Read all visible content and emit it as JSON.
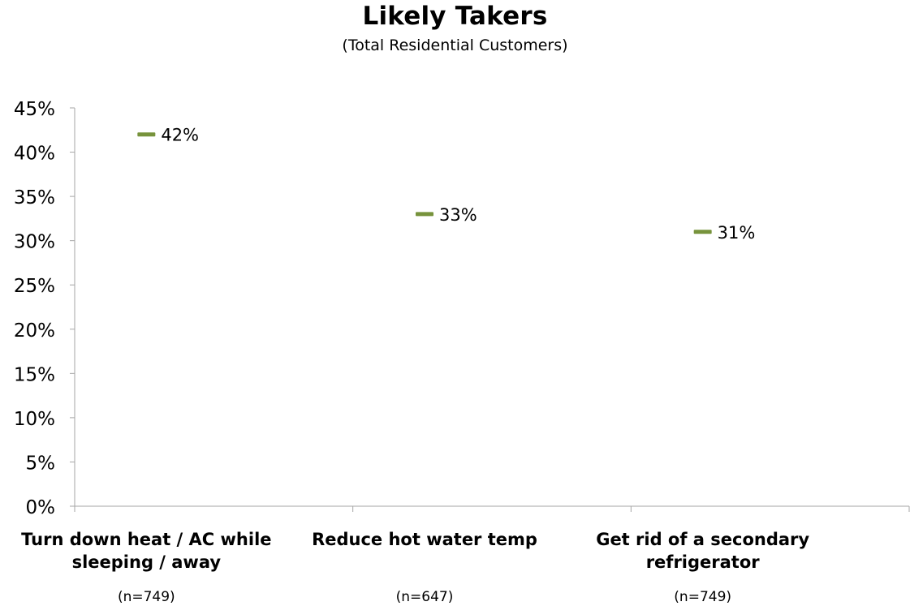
{
  "chart_data": {
    "type": "scatter",
    "title": "Likely Takers",
    "subtitle": "(Total Residential Customers)",
    "categories": [
      "Turn down heat / AC while sleeping / away",
      "Reduce hot water temp",
      "Get rid of a secondary refrigerator"
    ],
    "category_lines": [
      [
        "Turn down heat / AC while",
        "sleeping / away"
      ],
      [
        "Reduce hot water temp"
      ],
      [
        "Get rid of a secondary",
        "refrigerator"
      ]
    ],
    "sample_sizes": [
      "(n=749)",
      "(n=647)",
      "(n=749)"
    ],
    "values": [
      42,
      33,
      31
    ],
    "data_labels": [
      "42%",
      "33%",
      "31%"
    ],
    "ylim": [
      0,
      45
    ],
    "yticks": [
      0,
      5,
      10,
      15,
      20,
      25,
      30,
      35,
      40,
      45
    ],
    "ytick_labels": [
      "0%",
      "5%",
      "10%",
      "15%",
      "20%",
      "25%",
      "30%",
      "35%",
      "40%",
      "45%"
    ],
    "grid": false,
    "legend": "none",
    "colors": {
      "marker": "#77933c",
      "axis": "#a6a6a6",
      "text": "#000000"
    }
  }
}
